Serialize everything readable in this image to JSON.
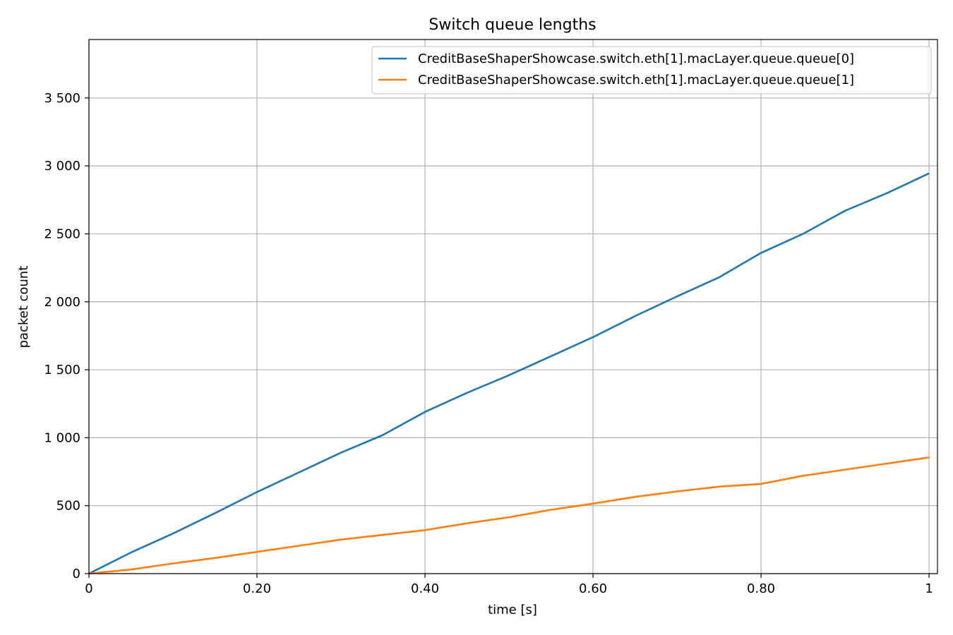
{
  "chart_data": {
    "type": "line",
    "title": "Switch queue lengths",
    "xlabel": "time [s]",
    "ylabel": "packet count",
    "xlim": [
      0,
      1.01
    ],
    "ylim": [
      0,
      3930
    ],
    "x_ticks": [
      {
        "value": 0,
        "label": "0"
      },
      {
        "value": 0.2,
        "label": "0.20"
      },
      {
        "value": 0.4,
        "label": "0.40"
      },
      {
        "value": 0.6,
        "label": "0.60"
      },
      {
        "value": 0.8,
        "label": "0.80"
      },
      {
        "value": 1.0,
        "label": "1"
      }
    ],
    "y_ticks": [
      {
        "value": 0,
        "label": "0"
      },
      {
        "value": 500,
        "label": "500"
      },
      {
        "value": 1000,
        "label": "1 000"
      },
      {
        "value": 1500,
        "label": "1 500"
      },
      {
        "value": 2000,
        "label": "2 000"
      },
      {
        "value": 2500,
        "label": "2 500"
      },
      {
        "value": 3000,
        "label": "3 000"
      },
      {
        "value": 3500,
        "label": "3 500"
      }
    ],
    "grid": true,
    "legend_position": "top-right",
    "series": [
      {
        "name": "CreditBaseShaperShowcase.switch.eth[1].macLayer.queue.queue[0]",
        "color": "#1f77b4",
        "points": [
          [
            0,
            0
          ],
          [
            0.05,
            155
          ],
          [
            0.1,
            295
          ],
          [
            0.15,
            445
          ],
          [
            0.2,
            600
          ],
          [
            0.25,
            745
          ],
          [
            0.3,
            890
          ],
          [
            0.35,
            1020
          ],
          [
            0.4,
            1190
          ],
          [
            0.45,
            1330
          ],
          [
            0.5,
            1460
          ],
          [
            0.55,
            1600
          ],
          [
            0.6,
            1740
          ],
          [
            0.65,
            1895
          ],
          [
            0.7,
            2040
          ],
          [
            0.75,
            2180
          ],
          [
            0.8,
            2360
          ],
          [
            0.85,
            2500
          ],
          [
            0.9,
            2670
          ],
          [
            0.95,
            2800
          ],
          [
            1.0,
            2945
          ]
        ]
      },
      {
        "name": "CreditBaseShaperShowcase.switch.eth[1].macLayer.queue.queue[1]",
        "color": "#ff7f0e",
        "points": [
          [
            0,
            0
          ],
          [
            0.05,
            30
          ],
          [
            0.1,
            75
          ],
          [
            0.15,
            115
          ],
          [
            0.2,
            160
          ],
          [
            0.25,
            205
          ],
          [
            0.3,
            250
          ],
          [
            0.35,
            285
          ],
          [
            0.4,
            320
          ],
          [
            0.45,
            370
          ],
          [
            0.5,
            415
          ],
          [
            0.55,
            470
          ],
          [
            0.6,
            515
          ],
          [
            0.65,
            565
          ],
          [
            0.7,
            605
          ],
          [
            0.75,
            640
          ],
          [
            0.8,
            660
          ],
          [
            0.85,
            720
          ],
          [
            0.9,
            765
          ],
          [
            0.95,
            810
          ],
          [
            1.0,
            855
          ]
        ]
      }
    ]
  }
}
